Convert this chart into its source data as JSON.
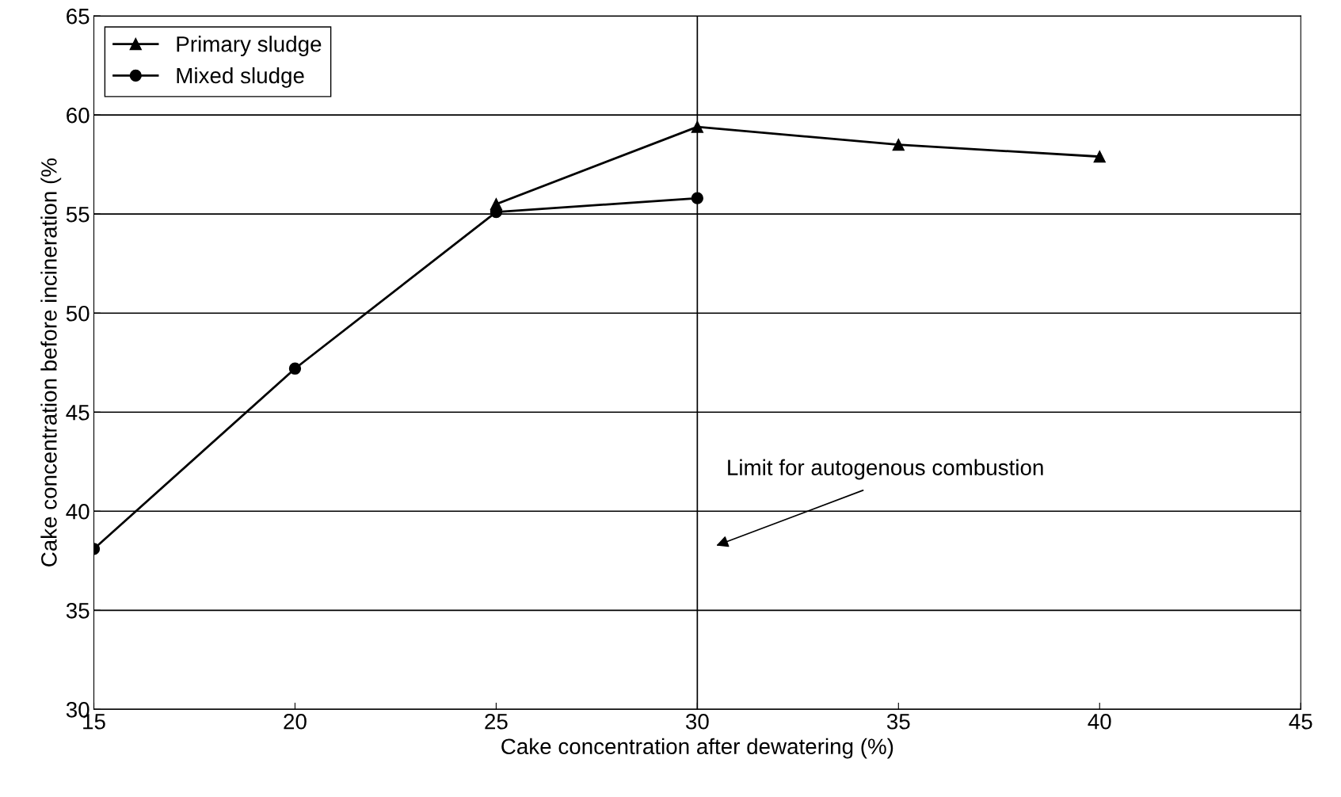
{
  "chart_data": {
    "type": "line",
    "xlabel": "Cake concentration after dewatering (%)",
    "ylabel": "Cake concentration before incineration (%",
    "series": [
      {
        "name": "Primary sludge",
        "color": "#000000",
        "marker": "triangle",
        "x": [
          25,
          30,
          35,
          40
        ],
        "values": [
          55.5,
          59.4,
          58.5,
          57.9
        ]
      },
      {
        "name": "Mixed sludge",
        "color": "#000000",
        "marker": "circle",
        "x": [
          15,
          20,
          25,
          30
        ],
        "values": [
          38.1,
          47.2,
          55.1,
          55.8
        ]
      }
    ],
    "xlim": [
      15,
      45
    ],
    "xticks": [
      15,
      20,
      25,
      30,
      35,
      40,
      45
    ],
    "ylim": [
      30,
      65
    ],
    "yticks": [
      30,
      35,
      40,
      45,
      50,
      55,
      60,
      65
    ],
    "grid": "y",
    "legend": "top left",
    "ref_lines": [
      {
        "axis": "x",
        "value": 30,
        "color": "#000000"
      }
    ],
    "annotations": [
      "Limit for autogenous combustion"
    ]
  }
}
